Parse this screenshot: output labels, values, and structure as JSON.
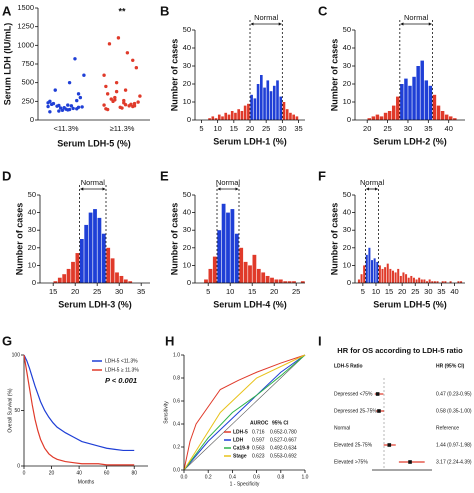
{
  "chart_data": [
    {
      "type": "strip",
      "label": "A",
      "ylabel": "Serum LDH (IU/mL)",
      "xlabel": "Serum LDH-5 (%)",
      "annotation": "**",
      "ylim": [
        0,
        1500
      ],
      "yticks": [
        0,
        250,
        500,
        750,
        1000,
        1250,
        1500
      ],
      "series": [
        {
          "name": "<11.3%",
          "color": "#1f3fd6",
          "values": [
            180,
            150,
            200,
            120,
            250,
            170,
            140,
            160,
            210,
            300,
            190,
            130,
            220,
            175,
            155,
            165,
            400,
            600,
            820,
            145,
            185,
            230,
            260,
            135,
            195,
            110,
            350,
            500
          ]
        },
        {
          "name": "≥11.3%",
          "color": "#e03a2a",
          "values": [
            200,
            180,
            260,
            300,
            150,
            220,
            400,
            500,
            350,
            700,
            900,
            1100,
            1020,
            240,
            190,
            170,
            280,
            320,
            210,
            160,
            250,
            600,
            800,
            230,
            270,
            450,
            190,
            205,
            380,
            140
          ]
        }
      ]
    },
    {
      "type": "histogram",
      "label": "B",
      "xlabel": "Serum LDH-1 (%)",
      "ylabel": "Number of cases",
      "normal_label": "Normal",
      "normal": [
        20,
        30
      ],
      "color_in": "#1f3fd6",
      "color_out": "#e03a2a",
      "xlim": [
        3,
        37
      ],
      "xticks": [
        5,
        10,
        15,
        20,
        25,
        30,
        35
      ],
      "ylim": [
        0,
        50
      ],
      "yticks": [
        0,
        10,
        20,
        30,
        40,
        50
      ],
      "bins": [
        7,
        8,
        9,
        10,
        11,
        12,
        13,
        14,
        15,
        16,
        17,
        18,
        19,
        20,
        21,
        22,
        23,
        24,
        25,
        26,
        27,
        28,
        29,
        30,
        31,
        32,
        33,
        34,
        35
      ],
      "counts": [
        1,
        2,
        1,
        3,
        2,
        4,
        3,
        5,
        4,
        6,
        5,
        8,
        9,
        14,
        12,
        20,
        25,
        18,
        22,
        16,
        19,
        22,
        13,
        10,
        6,
        4,
        3,
        2
      ]
    },
    {
      "type": "histogram",
      "label": "C",
      "xlabel": "Serum LDH-2 (%)",
      "ylabel": "Number of cases",
      "normal_label": "Normal",
      "normal": [
        28,
        36
      ],
      "color_in": "#1f3fd6",
      "color_out": "#e03a2a",
      "xlim": [
        17,
        44
      ],
      "xticks": [
        20,
        25,
        30,
        35,
        40
      ],
      "ylim": [
        0,
        50
      ],
      "yticks": [
        0,
        10,
        20,
        30,
        40,
        50
      ],
      "bins": [
        20,
        21,
        22,
        23,
        24,
        25,
        26,
        27,
        28,
        29,
        30,
        31,
        32,
        33,
        34,
        35,
        36,
        37,
        38,
        39,
        40,
        41,
        42
      ],
      "counts": [
        1,
        2,
        3,
        2,
        4,
        5,
        8,
        13,
        20,
        23,
        19,
        24,
        30,
        33,
        22,
        19,
        14,
        8,
        5,
        3,
        2,
        1
      ]
    },
    {
      "type": "histogram",
      "label": "D",
      "xlabel": "Serum LDH-3 (%)",
      "ylabel": "Number of cases",
      "normal_label": "Normal",
      "normal": [
        21,
        27
      ],
      "color_in": "#1f3fd6",
      "color_out": "#e03a2a",
      "xlim": [
        12,
        37
      ],
      "xticks": [
        15,
        20,
        25,
        30,
        35
      ],
      "ylim": [
        0,
        50
      ],
      "yticks": [
        0,
        10,
        20,
        30,
        40,
        50
      ],
      "bins": [
        15,
        16,
        17,
        18,
        19,
        20,
        21,
        22,
        23,
        24,
        25,
        26,
        27,
        28,
        29,
        30,
        31,
        32,
        33
      ],
      "counts": [
        1,
        3,
        5,
        8,
        12,
        17,
        25,
        33,
        40,
        42,
        37,
        28,
        20,
        14,
        6,
        4,
        2,
        1
      ]
    },
    {
      "type": "histogram",
      "label": "E",
      "xlabel": "Serum LDH-4 (%)",
      "ylabel": "Number of cases",
      "normal_label": "Normal",
      "normal": [
        7,
        12
      ],
      "color_in": "#1f3fd6",
      "color_out": "#e03a2a",
      "xlim": [
        2,
        27
      ],
      "xticks": [
        5,
        10,
        15,
        20,
        25
      ],
      "ylim": [
        0,
        50
      ],
      "yticks": [
        0,
        10,
        20,
        30,
        40,
        50
      ],
      "bins": [
        4,
        5,
        6,
        7,
        8,
        9,
        10,
        11,
        12,
        13,
        14,
        15,
        16,
        17,
        18,
        19,
        20,
        21,
        22,
        23,
        24,
        25,
        26,
        27
      ],
      "counts": [
        2,
        8,
        15,
        30,
        45,
        40,
        42,
        28,
        20,
        12,
        10,
        16,
        8,
        6,
        4,
        3,
        2,
        2,
        1,
        1,
        1,
        0,
        1
      ]
    },
    {
      "type": "histogram",
      "label": "F",
      "xlabel": "Serum LDH-5 (%)",
      "ylabel": "Number of cases",
      "normal_label": "Normal",
      "normal": [
        6,
        11
      ],
      "color_in": "#1f3fd6",
      "color_out": "#e03a2a",
      "xlim": [
        2,
        44
      ],
      "xticks": [
        5,
        10,
        15,
        20,
        25,
        30,
        35,
        40
      ],
      "ylim": [
        0,
        50
      ],
      "yticks": [
        0,
        10,
        20,
        30,
        40,
        50
      ],
      "bins": [
        3,
        4,
        5,
        6,
        7,
        8,
        9,
        10,
        11,
        12,
        13,
        14,
        15,
        16,
        17,
        18,
        19,
        20,
        21,
        22,
        23,
        24,
        25,
        26,
        27,
        28,
        29,
        30,
        31,
        32,
        33,
        34,
        35,
        36,
        37,
        38,
        39,
        40,
        41,
        42,
        43
      ],
      "counts": [
        2,
        5,
        10,
        16,
        20,
        13,
        14,
        12,
        10,
        8,
        9,
        11,
        8,
        7,
        6,
        8,
        4,
        6,
        5,
        3,
        4,
        3,
        2,
        3,
        2,
        2,
        1,
        2,
        1,
        1,
        1,
        0,
        1,
        1,
        0,
        1,
        0,
        0,
        1,
        1
      ]
    },
    {
      "type": "line",
      "label": "G",
      "xlabel": "Months",
      "ylabel": "Overall Survival (%)",
      "annotation": "P < 0.001",
      "xlim": [
        0,
        90
      ],
      "xticks": [
        0,
        20,
        40,
        60,
        80
      ],
      "ylim": [
        0,
        100
      ],
      "yticks": [
        0,
        50,
        100
      ],
      "x": [
        0,
        2,
        4,
        6,
        8,
        10,
        12,
        15,
        18,
        21,
        24,
        30,
        36,
        42,
        48,
        54,
        60,
        66,
        72,
        80
      ],
      "series": [
        {
          "name": "LDH-5 <11.3%",
          "color": "#1f3fd6",
          "values": [
            100,
            95,
            88,
            80,
            72,
            65,
            58,
            50,
            44,
            39,
            35,
            30,
            26,
            22,
            20,
            18,
            16,
            15,
            14,
            14
          ]
        },
        {
          "name": "LDH-5 ≥ 11.3%",
          "color": "#e03a2a",
          "values": [
            100,
            85,
            70,
            55,
            42,
            32,
            24,
            16,
            11,
            8,
            6,
            4,
            3,
            2,
            2,
            2,
            1,
            1,
            1,
            1
          ]
        }
      ]
    },
    {
      "type": "roc",
      "label": "H",
      "xlabel": "1 - Specificity",
      "ylabel": "Sensitivity",
      "columns": [
        "AUROC",
        "95% CI"
      ],
      "xlim": [
        0,
        1
      ],
      "ylim": [
        0,
        1
      ],
      "xticks": [
        {
          "value": 0,
          "label": "0.0"
        },
        {
          "value": 0.2,
          "label": "0.2"
        },
        {
          "value": 0.4,
          "label": "0.4"
        },
        {
          "value": 0.6,
          "label": "0.6"
        },
        {
          "value": 0.8,
          "label": "0.8"
        },
        {
          "value": 1,
          "label": "1.0"
        }
      ],
      "yticks": [
        {
          "value": 0,
          "label": "0.0"
        },
        {
          "value": 0.2,
          "label": "0.2"
        },
        {
          "value": 0.4,
          "label": "0.4"
        },
        {
          "value": 0.6,
          "label": "0.6"
        },
        {
          "value": 0.8,
          "label": "0.8"
        },
        {
          "value": 1,
          "label": "1.0"
        }
      ],
      "series": [
        {
          "name": "LDH-5",
          "color": "#e03a2a",
          "auc": 0.716,
          "ci": "0.652-0.780",
          "x": [
            0,
            0.05,
            0.1,
            0.2,
            0.3,
            0.45,
            0.6,
            0.8,
            1
          ],
          "values": [
            0,
            0.25,
            0.4,
            0.55,
            0.7,
            0.78,
            0.85,
            0.93,
            1
          ]
        },
        {
          "name": "LDH",
          "color": "#1f3fd6",
          "auc": 0.597,
          "ci": "0.527-0.667",
          "x": [
            0,
            0.2,
            0.4,
            0.6,
            0.8,
            1
          ],
          "values": [
            0,
            0.25,
            0.45,
            0.65,
            0.85,
            1
          ]
        },
        {
          "name": "Ca19-9",
          "color": "#2db34a",
          "auc": 0.563,
          "ci": "0.492-0.634",
          "x": [
            0,
            0.2,
            0.4,
            0.6,
            0.8,
            1
          ],
          "values": [
            0,
            0.28,
            0.5,
            0.65,
            0.82,
            1
          ]
        },
        {
          "name": "Stage",
          "color": "#e8c21a",
          "auc": 0.623,
          "ci": "0.553-0.692",
          "x": [
            0,
            0.3,
            0.6,
            1
          ],
          "values": [
            0,
            0.5,
            0.8,
            1
          ]
        }
      ]
    },
    {
      "type": "forest",
      "label": "I",
      "title": "HR for OS according to LDH-5 ratio",
      "columns": [
        "LDH-5 Ratio",
        "HR (95% CI)"
      ],
      "xlim": [
        0,
        5
      ],
      "reference_line": 1,
      "color": "#e03a2a",
      "categories": [
        "Depressed <75%",
        "Depressed 25-75%",
        "Normal",
        "Elevated 25-75%",
        "Elevated >75%"
      ],
      "values": [
        0.47,
        0.58,
        null,
        1.44,
        3.17
      ],
      "lower": [
        0.23,
        0.35,
        null,
        0.97,
        2.24
      ],
      "upper": [
        0.95,
        1.0,
        null,
        1.98,
        4.39
      ],
      "value_labels": [
        "0.47 (0.23-0.95)",
        "0.58 (0.35-1.00)",
        "Reference",
        "1.44 (0.97-1.98)",
        "3.17 (2.24-4.39)"
      ]
    }
  ]
}
